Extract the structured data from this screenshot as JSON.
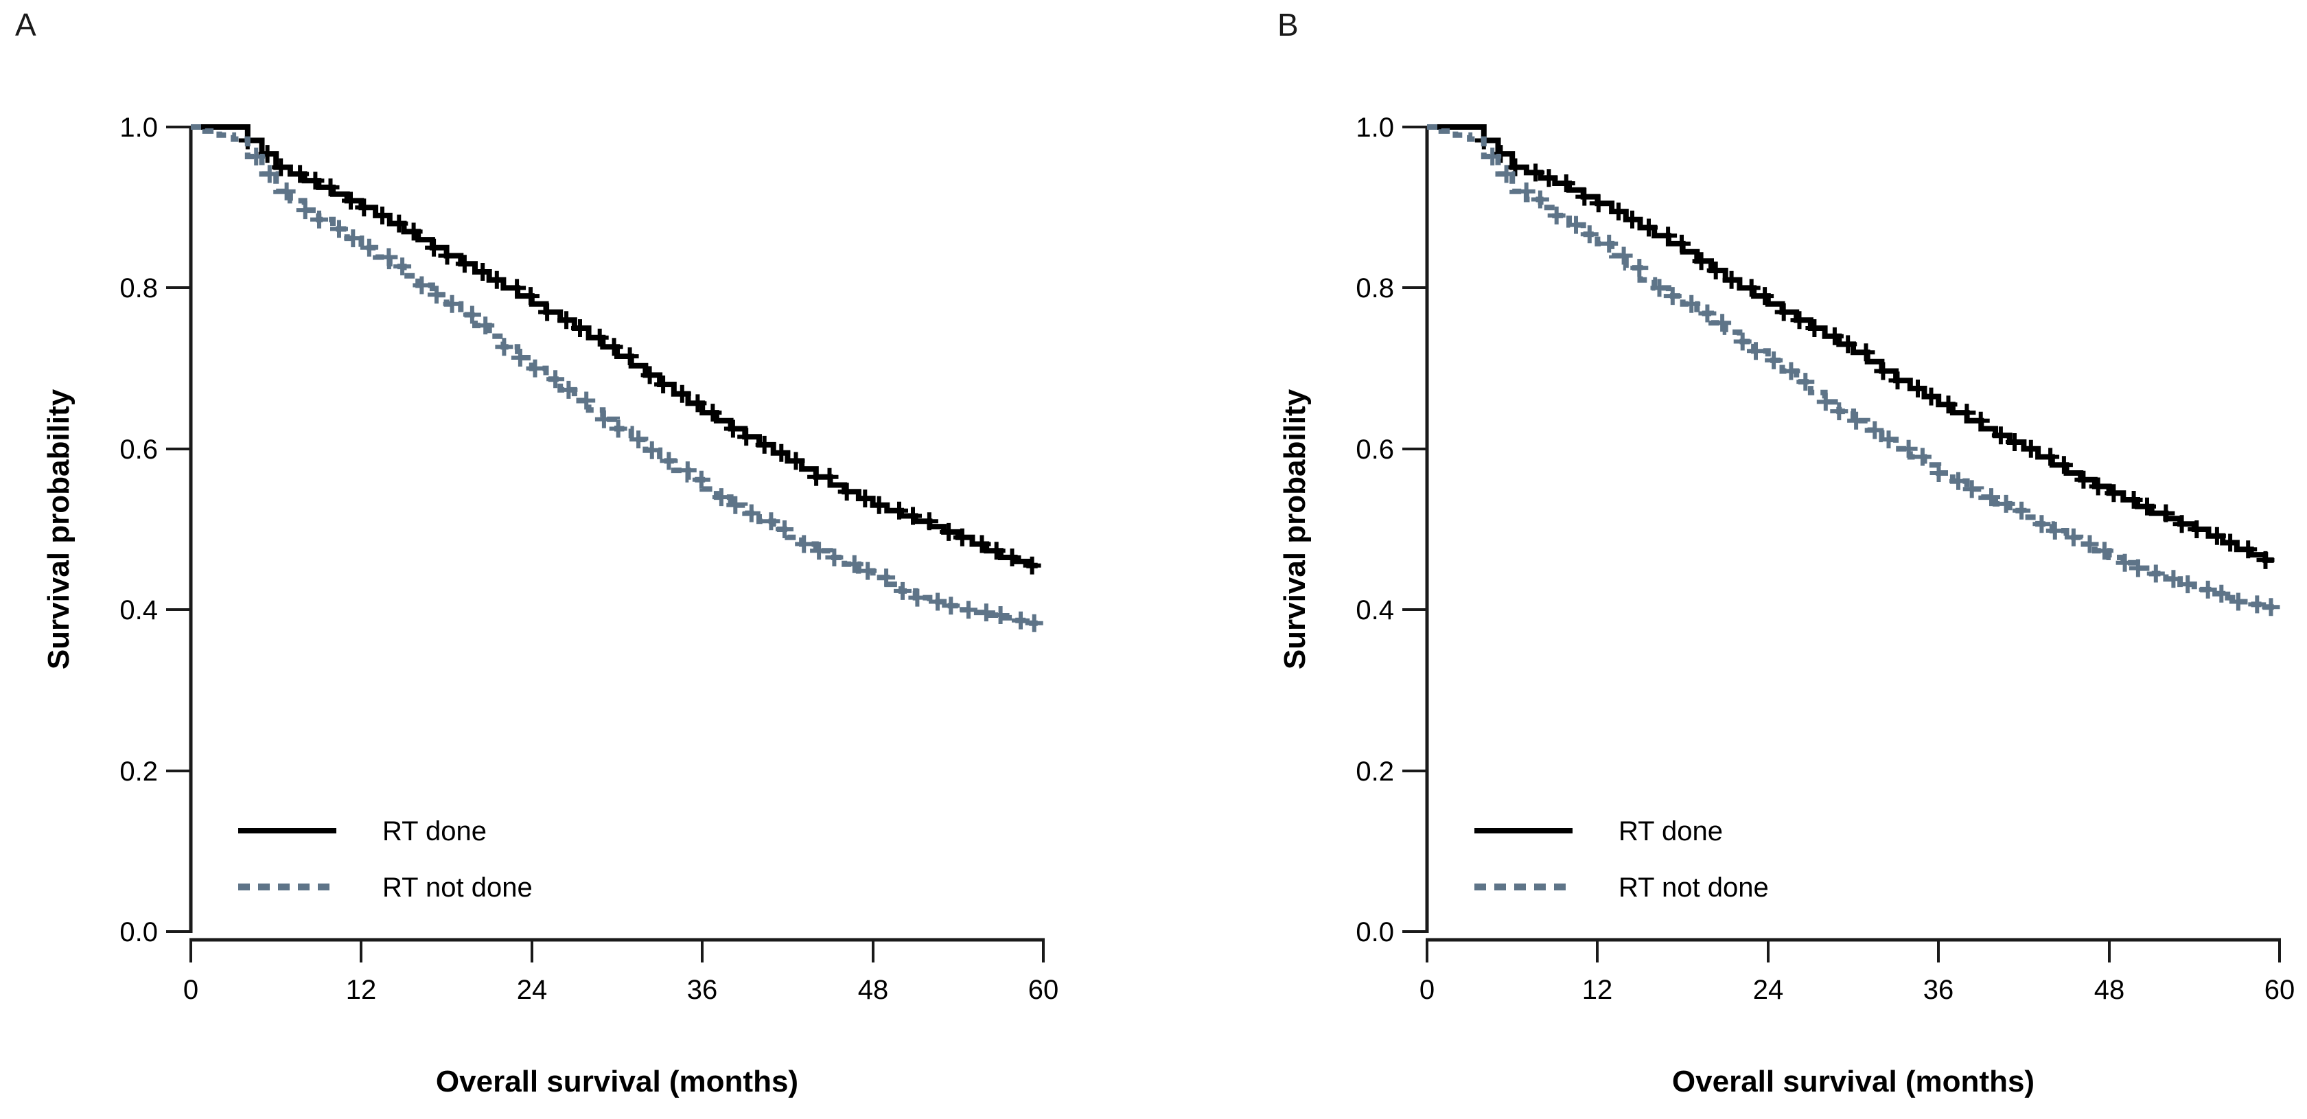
{
  "figure": {
    "background": "#ffffff",
    "panel_count": 2
  },
  "colors": {
    "rt_done": "#000000",
    "rt_not_done": "#5E7488",
    "axis": "#1a1a1a",
    "text": "#000000"
  },
  "chart_data": [
    {
      "type": "line",
      "subtype": "kaplan-meier-step",
      "panel_label": "A",
      "xlabel": "Overall survival (months)",
      "ylabel": "Survival probability",
      "xlim": [
        0,
        60
      ],
      "ylim": [
        0.0,
        1.0
      ],
      "x_ticks": [
        "0",
        "12",
        "24",
        "36",
        "48",
        "60"
      ],
      "y_ticks": [
        "1.0",
        "0.8",
        "0.6",
        "0.4",
        "0.2",
        "0.0"
      ],
      "grid": false,
      "legend_position": "bottom-left-inside",
      "censor_marks": true,
      "months": [
        0,
        3,
        6,
        9,
        12,
        15,
        18,
        21,
        24,
        27,
        30,
        33,
        36,
        39,
        42,
        45,
        48,
        51,
        54,
        57,
        60
      ],
      "series": [
        {
          "name": "RT done",
          "style": "solid",
          "color": "#000000",
          "values": [
            1.0,
            1.0,
            0.95,
            0.925,
            0.9,
            0.87,
            0.84,
            0.81,
            0.78,
            0.75,
            0.715,
            0.68,
            0.645,
            0.615,
            0.585,
            0.555,
            0.53,
            0.51,
            0.49,
            0.465,
            0.45
          ]
        },
        {
          "name": "RT not done",
          "style": "dashed",
          "color": "#5E7488",
          "values": [
            1.0,
            0.985,
            0.92,
            0.885,
            0.85,
            0.815,
            0.78,
            0.74,
            0.7,
            0.66,
            0.625,
            0.585,
            0.55,
            0.52,
            0.49,
            0.465,
            0.44,
            0.415,
            0.4,
            0.39,
            0.38
          ]
        }
      ]
    },
    {
      "type": "line",
      "subtype": "kaplan-meier-step",
      "panel_label": "B",
      "xlabel": "Overall survival (months)",
      "ylabel": "Survival probability",
      "xlim": [
        0,
        60
      ],
      "ylim": [
        0.0,
        1.0
      ],
      "x_ticks": [
        "0",
        "12",
        "24",
        "36",
        "48",
        "60"
      ],
      "y_ticks": [
        "1.0",
        "0.8",
        "0.6",
        "0.4",
        "0.2",
        "0.0"
      ],
      "grid": false,
      "legend_position": "bottom-left-inside",
      "censor_marks": true,
      "months": [
        0,
        3,
        6,
        9,
        12,
        15,
        18,
        21,
        24,
        27,
        30,
        33,
        36,
        39,
        42,
        45,
        48,
        51,
        54,
        57,
        60
      ],
      "series": [
        {
          "name": "RT done",
          "style": "solid",
          "color": "#000000",
          "values": [
            1.0,
            1.0,
            0.95,
            0.93,
            0.905,
            0.875,
            0.845,
            0.81,
            0.78,
            0.75,
            0.72,
            0.685,
            0.655,
            0.625,
            0.6,
            0.57,
            0.545,
            0.52,
            0.5,
            0.475,
            0.455
          ]
        },
        {
          "name": "RT not done",
          "style": "dashed",
          "color": "#5E7488",
          "values": [
            1.0,
            0.985,
            0.92,
            0.89,
            0.855,
            0.81,
            0.78,
            0.745,
            0.71,
            0.67,
            0.635,
            0.6,
            0.57,
            0.54,
            0.515,
            0.49,
            0.465,
            0.445,
            0.425,
            0.41,
            0.4
          ]
        }
      ]
    }
  ]
}
